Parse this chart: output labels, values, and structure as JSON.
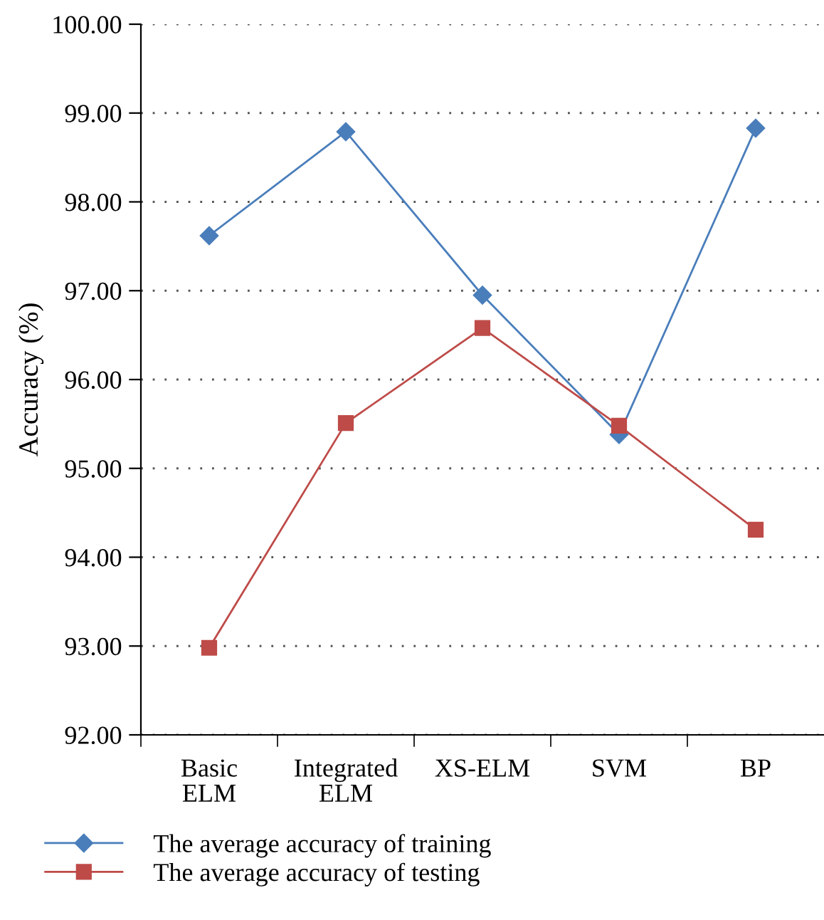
{
  "chart_data": {
    "type": "line",
    "ylabel": "Accuracy (%)",
    "categories": [
      "Basic\nELM",
      "Integrated\nELM",
      "XS-ELM",
      "SVM",
      "BP"
    ],
    "series": [
      {
        "name": "The average accuracy of training",
        "color": "#4a7ebb",
        "marker": "diamond",
        "values": [
          97.62,
          98.79,
          96.95,
          95.38,
          98.83
        ]
      },
      {
        "name": "The average accuracy of testing",
        "color": "#be4b48",
        "marker": "square",
        "values": [
          92.98,
          95.51,
          96.58,
          95.48,
          94.31
        ]
      }
    ],
    "ylim": [
      92,
      100
    ],
    "yticks": [
      {
        "value": 92,
        "label": "92.00"
      },
      {
        "value": 93,
        "label": "93.00"
      },
      {
        "value": 94,
        "label": "94.00"
      },
      {
        "value": 95,
        "label": "95.00"
      },
      {
        "value": 96,
        "label": "96.00"
      },
      {
        "value": 97,
        "label": "97.00"
      },
      {
        "value": 98,
        "label": "98.00"
      },
      {
        "value": 99,
        "label": "99.00"
      },
      {
        "value": 100,
        "label": "100.00"
      }
    ],
    "grid": "y",
    "legend": "bottom left",
    "line_style": "solid"
  }
}
